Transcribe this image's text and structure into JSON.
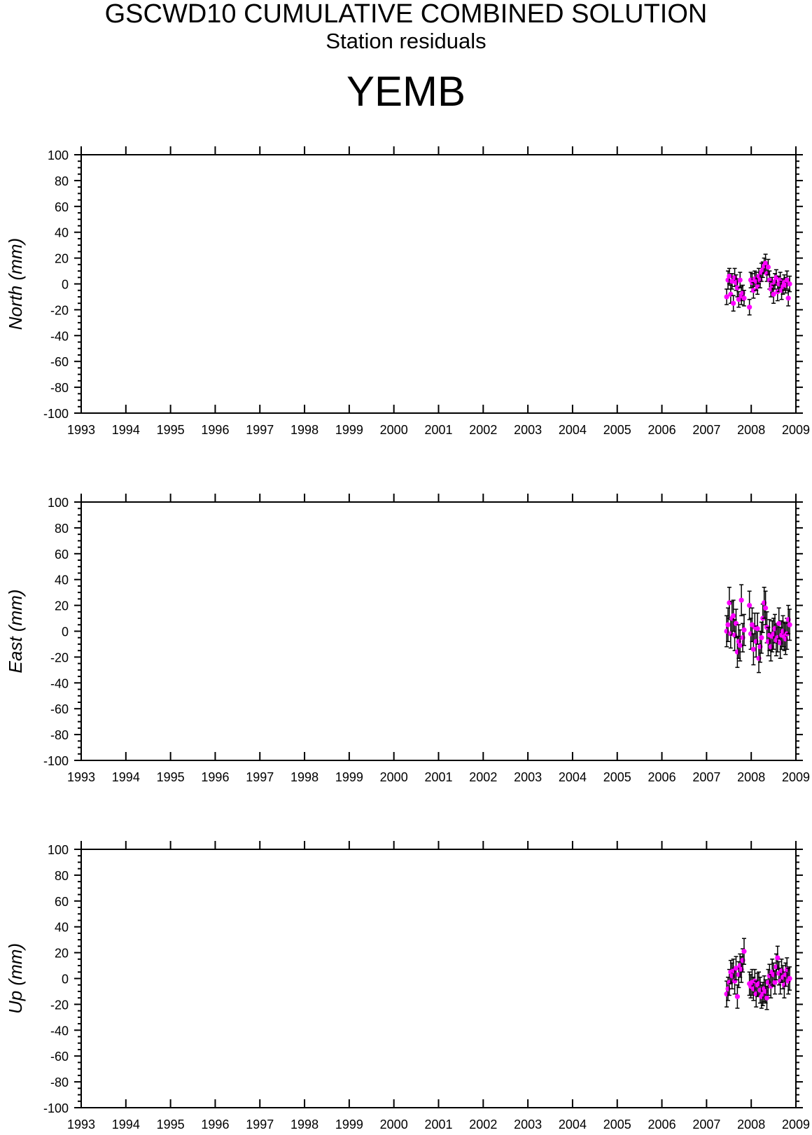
{
  "header": {
    "title": "GSCWD10 CUMULATIVE COMBINED SOLUTION",
    "subtitle": "Station residuals",
    "station": "YEMB"
  },
  "style": {
    "point_color": "#ff00ff",
    "error_bar_color": "#000000",
    "axis_color": "#000000"
  },
  "chart_data": [
    {
      "type": "scatter",
      "component": "north",
      "ylabel": "North (mm)",
      "xlim": [
        1993,
        2009
      ],
      "ylim": [
        -100,
        100
      ],
      "x_ticks": [
        1993,
        1994,
        1995,
        1996,
        1997,
        1998,
        1999,
        2000,
        2001,
        2002,
        2003,
        2004,
        2005,
        2006,
        2007,
        2008,
        2009
      ],
      "y_ticks": [
        100,
        80,
        60,
        40,
        20,
        0,
        -20,
        -40,
        -60,
        -80,
        -100
      ],
      "grid": false,
      "series": [
        {
          "x": [
            2007.45,
            2007.48,
            2007.51,
            2007.54,
            2007.57,
            2007.6,
            2007.63,
            2007.66,
            2007.69,
            2007.72,
            2007.75,
            2007.78,
            2007.81,
            2007.84,
            2007.96,
            2007.99,
            2008.02,
            2008.05,
            2008.08,
            2008.11,
            2008.14,
            2008.17,
            2008.2,
            2008.23,
            2008.26,
            2008.29,
            2008.32,
            2008.35,
            2008.38,
            2008.41,
            2008.44,
            2008.47,
            2008.5,
            2008.53,
            2008.56,
            2008.59,
            2008.62,
            2008.65,
            2008.68,
            2008.71,
            2008.74,
            2008.77,
            2008.8,
            2008.83,
            2008.86
          ],
          "y": [
            -10,
            3,
            6,
            -8,
            2,
            -15,
            5,
            1,
            -3,
            -12,
            3,
            -9,
            -7,
            -11,
            -18,
            3,
            1,
            -5,
            4,
            2,
            -2,
            6,
            3,
            9,
            11,
            14,
            16,
            8,
            13,
            3,
            -4,
            -1,
            -8,
            2,
            5,
            -6,
            0,
            3,
            -5,
            -2,
            1,
            -1,
            3,
            -11,
            0
          ],
          "err": [
            6,
            7,
            6,
            7,
            6,
            6,
            7,
            6,
            7,
            6,
            6,
            7,
            6,
            6,
            6,
            6,
            7,
            6,
            6,
            7,
            6,
            6,
            6,
            7,
            6,
            6,
            7,
            6,
            6,
            7,
            6,
            6,
            7,
            6,
            6,
            7,
            6,
            6,
            7,
            6,
            6,
            6,
            7,
            6,
            6
          ]
        }
      ]
    },
    {
      "type": "scatter",
      "component": "east",
      "ylabel": "East (mm)",
      "xlim": [
        1993,
        2009
      ],
      "ylim": [
        -100,
        100
      ],
      "x_ticks": [
        1993,
        1994,
        1995,
        1996,
        1997,
        1998,
        1999,
        2000,
        2001,
        2002,
        2003,
        2004,
        2005,
        2006,
        2007,
        2008,
        2009
      ],
      "y_ticks": [
        100,
        80,
        60,
        40,
        20,
        0,
        -20,
        -40,
        -60,
        -80,
        -100
      ],
      "grid": false,
      "series": [
        {
          "x": [
            2007.45,
            2007.48,
            2007.51,
            2007.54,
            2007.57,
            2007.6,
            2007.63,
            2007.66,
            2007.69,
            2007.72,
            2007.75,
            2007.78,
            2007.81,
            2007.84,
            2007.96,
            2007.99,
            2008.02,
            2008.05,
            2008.08,
            2008.11,
            2008.14,
            2008.17,
            2008.2,
            2008.23,
            2008.26,
            2008.29,
            2008.32,
            2008.35,
            2008.38,
            2008.41,
            2008.44,
            2008.47,
            2008.5,
            2008.53,
            2008.56,
            2008.59,
            2008.62,
            2008.65,
            2008.68,
            2008.71,
            2008.74,
            2008.77,
            2008.8,
            2008.83,
            2008.86
          ],
          "y": [
            0,
            5,
            22,
            -2,
            10,
            12,
            -3,
            6,
            -16,
            -8,
            -11,
            24,
            -5,
            1,
            20,
            -2,
            5,
            -14,
            3,
            -8,
            2,
            -21,
            -12,
            -5,
            10,
            22,
            18,
            3,
            -8,
            -3,
            -12,
            -4,
            -2,
            2,
            -7,
            -5,
            6,
            -9,
            -3,
            0,
            -4,
            -6,
            -2,
            9,
            5
          ],
          "err": [
            12,
            13,
            12,
            11,
            13,
            12,
            12,
            11,
            12,
            13,
            12,
            12,
            11,
            12,
            11,
            12,
            13,
            12,
            11,
            12,
            12,
            11,
            12,
            12,
            11,
            12,
            13,
            12,
            11,
            12,
            11,
            12,
            12,
            11,
            12,
            11,
            12,
            12,
            11,
            12,
            11,
            12,
            12,
            11,
            12
          ]
        }
      ]
    },
    {
      "type": "scatter",
      "component": "up",
      "ylabel": "Up (mm)",
      "xlim": [
        1993,
        2009
      ],
      "ylim": [
        -100,
        100
      ],
      "x_ticks": [
        1993,
        1994,
        1995,
        1996,
        1997,
        1998,
        1999,
        2000,
        2001,
        2002,
        2003,
        2004,
        2005,
        2006,
        2007,
        2008,
        2009
      ],
      "y_ticks": [
        100,
        80,
        60,
        40,
        20,
        0,
        -20,
        -40,
        -60,
        -80,
        -100
      ],
      "grid": false,
      "series": [
        {
          "x": [
            2007.45,
            2007.48,
            2007.51,
            2007.54,
            2007.57,
            2007.6,
            2007.63,
            2007.66,
            2007.69,
            2007.72,
            2007.75,
            2007.78,
            2007.81,
            2007.84,
            2007.96,
            2007.99,
            2008.02,
            2008.05,
            2008.08,
            2008.11,
            2008.14,
            2008.17,
            2008.2,
            2008.23,
            2008.26,
            2008.29,
            2008.32,
            2008.35,
            2008.38,
            2008.41,
            2008.44,
            2008.47,
            2008.5,
            2008.53,
            2008.56,
            2008.59,
            2008.62,
            2008.65,
            2008.68,
            2008.71,
            2008.74,
            2008.77,
            2008.8,
            2008.83,
            2008.86
          ],
          "y": [
            -12,
            -8,
            -3,
            5,
            2,
            6,
            -2,
            8,
            -14,
            3,
            10,
            7,
            14,
            21,
            -4,
            -6,
            -3,
            -8,
            -2,
            -12,
            -5,
            -4,
            -9,
            -14,
            -12,
            -8,
            -10,
            -15,
            -3,
            2,
            -6,
            5,
            3,
            -3,
            9,
            16,
            4,
            -2,
            6,
            1,
            -5,
            3,
            7,
            -2,
            0
          ],
          "err": [
            10,
            9,
            10,
            9,
            10,
            9,
            10,
            9,
            9,
            10,
            9,
            10,
            9,
            10,
            9,
            9,
            10,
            9,
            9,
            10,
            9,
            9,
            10,
            9,
            9,
            10,
            9,
            9,
            10,
            9,
            9,
            10,
            9,
            9,
            10,
            9,
            9,
            10,
            9,
            9,
            10,
            9,
            9,
            10,
            9
          ]
        }
      ]
    }
  ]
}
